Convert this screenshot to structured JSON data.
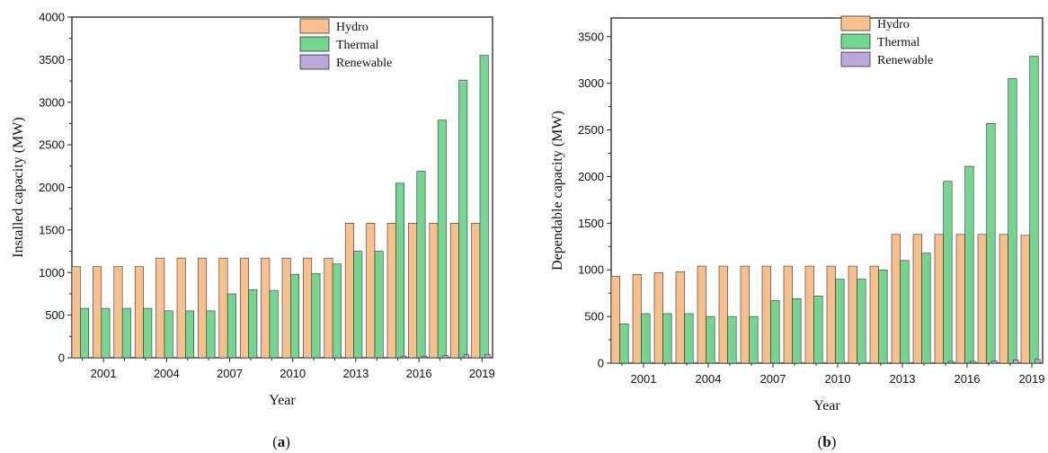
{
  "colors": {
    "Hydro": "#f9c08e",
    "Thermal": "#74d691",
    "Renewable": "#b9a8d9",
    "axis": "#222222"
  },
  "chart_data": [
    {
      "type": "bar",
      "caption_open": "(",
      "caption_letter": "a",
      "caption_close": ")",
      "xlabel": "Year",
      "ylabel": "Installed capacity (MW)",
      "ylim": [
        0,
        4000
      ],
      "yticks": [
        0,
        500,
        1000,
        1500,
        2000,
        2500,
        3000,
        3500,
        4000
      ],
      "categories": [
        2000,
        2001,
        2002,
        2003,
        2004,
        2005,
        2006,
        2007,
        2008,
        2009,
        2010,
        2011,
        2012,
        2013,
        2014,
        2015,
        2016,
        2017,
        2018,
        2019
      ],
      "xticks": [
        2001,
        2004,
        2007,
        2010,
        2013,
        2016,
        2019
      ],
      "legend_position": "top-right",
      "grid": false,
      "series": [
        {
          "name": "Hydro",
          "values": [
            1070,
            1070,
            1070,
            1070,
            1170,
            1170,
            1170,
            1170,
            1170,
            1170,
            1170,
            1170,
            1170,
            1580,
            1580,
            1580,
            1580,
            1580,
            1580,
            1580
          ]
        },
        {
          "name": "Thermal",
          "values": [
            580,
            580,
            580,
            580,
            550,
            550,
            550,
            750,
            800,
            790,
            980,
            990,
            1100,
            1250,
            1250,
            2050,
            2190,
            2790,
            3260,
            3550
          ]
        },
        {
          "name": "Renewable",
          "values": [
            0,
            0,
            0,
            0,
            0,
            0,
            0,
            0,
            0,
            0,
            0,
            0,
            0,
            0,
            0,
            20,
            20,
            25,
            35,
            40
          ]
        }
      ]
    },
    {
      "type": "bar",
      "caption_open": "(",
      "caption_letter": "b",
      "caption_close": ")",
      "xlabel": "Year",
      "ylabel": "Dependable capacity (MW)",
      "ylim": [
        0,
        3700
      ],
      "yticks": [
        0,
        500,
        1000,
        1500,
        2000,
        2500,
        3000,
        3500
      ],
      "categories": [
        2000,
        2001,
        2002,
        2003,
        2004,
        2005,
        2006,
        2007,
        2008,
        2009,
        2010,
        2011,
        2012,
        2013,
        2014,
        2015,
        2016,
        2017,
        2018,
        2019
      ],
      "xticks": [
        2001,
        2004,
        2007,
        2010,
        2013,
        2016,
        2019
      ],
      "legend_position": "top-right",
      "grid": false,
      "series": [
        {
          "name": "Hydro",
          "values": [
            930,
            950,
            970,
            980,
            1040,
            1040,
            1040,
            1040,
            1040,
            1040,
            1040,
            1040,
            1040,
            1380,
            1380,
            1380,
            1380,
            1380,
            1380,
            1370
          ]
        },
        {
          "name": "Thermal",
          "values": [
            420,
            530,
            530,
            530,
            500,
            500,
            500,
            670,
            690,
            720,
            900,
            900,
            1000,
            1100,
            1180,
            1950,
            2110,
            2570,
            3050,
            3290
          ]
        },
        {
          "name": "Renewable",
          "values": [
            0,
            0,
            0,
            0,
            0,
            0,
            0,
            0,
            0,
            0,
            0,
            0,
            0,
            0,
            0,
            20,
            20,
            25,
            35,
            40
          ]
        }
      ]
    }
  ]
}
